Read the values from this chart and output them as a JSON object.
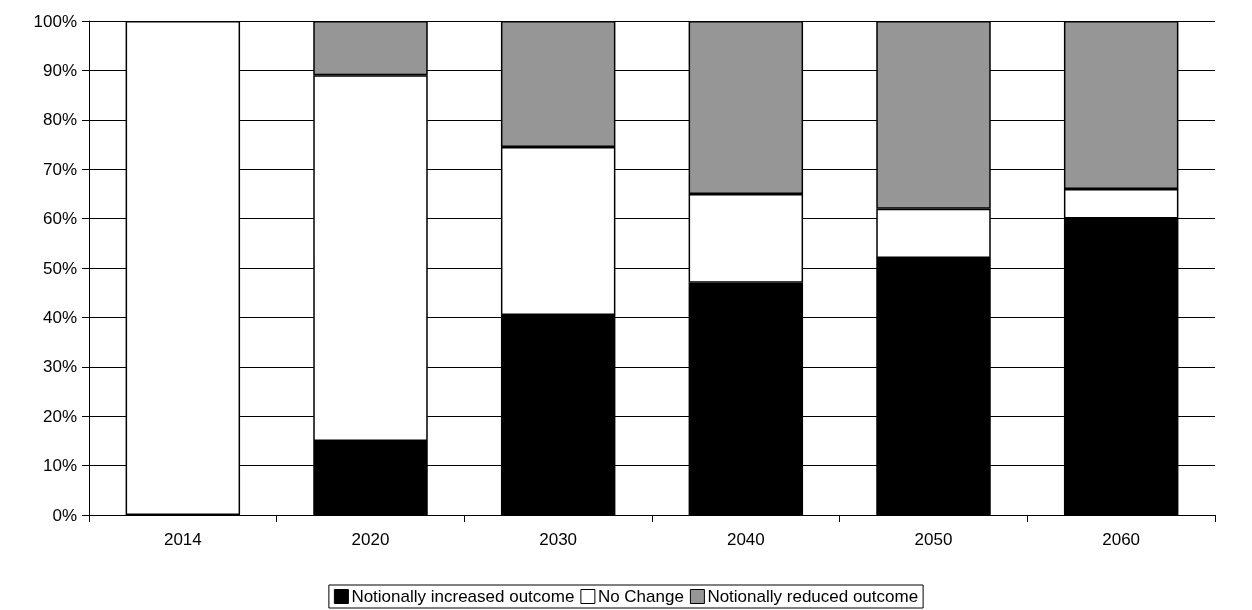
{
  "chart_data": {
    "type": "bar",
    "stacked": true,
    "categories": [
      "2014",
      "2020",
      "2030",
      "2040",
      "2050",
      "2060"
    ],
    "series": [
      {
        "name": "Notionally increased outcome",
        "color": "#000000",
        "values": [
          0,
          15,
          40.5,
          47,
          52,
          60
        ]
      },
      {
        "name": "No Change",
        "color": "#ffffff",
        "values": [
          100,
          74,
          34,
          18,
          10,
          6
        ]
      },
      {
        "name": "Notionally reduced outcome",
        "color": "#969696",
        "values": [
          0,
          11,
          25.5,
          35,
          38,
          34
        ]
      }
    ],
    "ylim": [
      0,
      100
    ],
    "yticks": [
      {
        "value": 0,
        "label": "0%"
      },
      {
        "value": 10,
        "label": "10%"
      },
      {
        "value": 20,
        "label": "20%"
      },
      {
        "value": 30,
        "label": "30%"
      },
      {
        "value": 40,
        "label": "40%"
      },
      {
        "value": 50,
        "label": "50%"
      },
      {
        "value": 60,
        "label": "60%"
      },
      {
        "value": 70,
        "label": "70%"
      },
      {
        "value": 80,
        "label": "80%"
      },
      {
        "value": 90,
        "label": "90%"
      },
      {
        "value": 100,
        "label": "100%"
      }
    ],
    "grid": "y",
    "legend": "bottom"
  }
}
